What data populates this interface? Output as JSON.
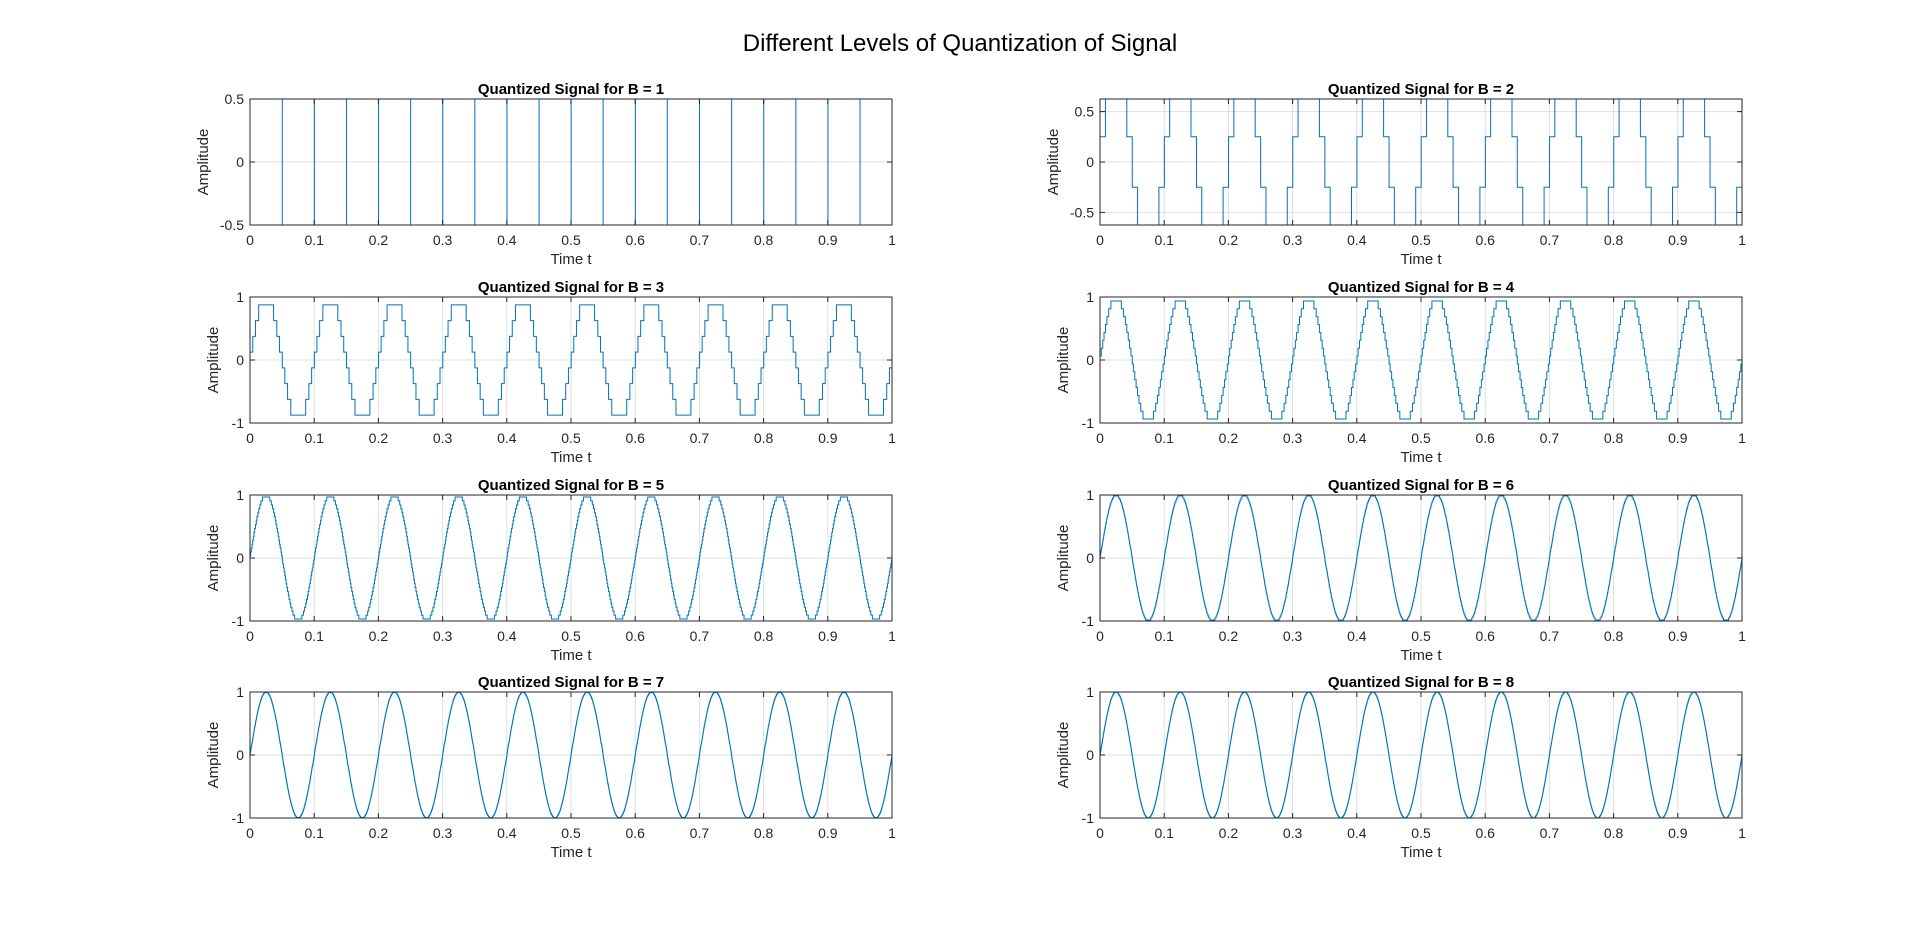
{
  "figure": {
    "title": "Different Levels of Quantization of Signal",
    "colors": {
      "line": "#0072BD",
      "grid": "#dfdfdf",
      "axis": "#262626",
      "background": "#ffffff"
    }
  },
  "chart_data": [
    {
      "type": "line",
      "title": "Quantized Signal for B = 1",
      "xlabel": "Time t",
      "ylabel": "Amplitude",
      "bits": 1,
      "signal": "quantized sin(2*pi*10*t)",
      "frequency_hz": 10,
      "xlim": [
        0,
        1
      ],
      "ylim": [
        -0.5,
        0.5
      ],
      "xticks": [
        0,
        0.1,
        0.2,
        0.3,
        0.4,
        0.5,
        0.6,
        0.7,
        0.8,
        0.9,
        1
      ],
      "xtick_labels": [
        "0",
        "0.1",
        "0.2",
        "0.3",
        "0.4",
        "0.5",
        "0.6",
        "0.7",
        "0.8",
        "0.9",
        "1"
      ],
      "yticks": [
        -0.5,
        0,
        0.5
      ],
      "ytick_labels": [
        "-0.5",
        "0",
        "0.5"
      ],
      "levels": [
        -0.5,
        0.5
      ],
      "grid": true
    },
    {
      "type": "line",
      "title": "Quantized Signal for B = 2",
      "xlabel": "Time t",
      "ylabel": "Amplitude",
      "bits": 2,
      "signal": "quantized sin(2*pi*10*t)",
      "frequency_hz": 10,
      "xlim": [
        0,
        1
      ],
      "ylim": [
        -0.625,
        0.625
      ],
      "xticks": [
        0,
        0.1,
        0.2,
        0.3,
        0.4,
        0.5,
        0.6,
        0.7,
        0.8,
        0.9,
        1
      ],
      "xtick_labels": [
        "0",
        "0.1",
        "0.2",
        "0.3",
        "0.4",
        "0.5",
        "0.6",
        "0.7",
        "0.8",
        "0.9",
        "1"
      ],
      "yticks": [
        -0.5,
        0,
        0.5
      ],
      "ytick_labels": [
        "-0.5",
        "0",
        "0.5"
      ],
      "levels": [
        -0.625,
        -0.125,
        0.125,
        0.625
      ],
      "grid": true
    },
    {
      "type": "line",
      "title": "Quantized Signal for B = 3",
      "xlabel": "Time t",
      "ylabel": "Amplitude",
      "bits": 3,
      "signal": "quantized sin(2*pi*10*t)",
      "frequency_hz": 10,
      "xlim": [
        0,
        1
      ],
      "ylim": [
        -1,
        1
      ],
      "xticks": [
        0,
        0.1,
        0.2,
        0.3,
        0.4,
        0.5,
        0.6,
        0.7,
        0.8,
        0.9,
        1
      ],
      "xtick_labels": [
        "0",
        "0.1",
        "0.2",
        "0.3",
        "0.4",
        "0.5",
        "0.6",
        "0.7",
        "0.8",
        "0.9",
        "1"
      ],
      "yticks": [
        -1,
        0,
        1
      ],
      "ytick_labels": [
        "-1",
        "0",
        "1"
      ],
      "levels": [
        -0.78125,
        -0.53125,
        -0.28125,
        -0.03125,
        0.21875,
        0.46875,
        0.71875,
        0.78125
      ],
      "grid": true
    },
    {
      "type": "line",
      "title": "Quantized Signal for B = 4",
      "xlabel": "Time t",
      "ylabel": "Amplitude",
      "bits": 4,
      "signal": "quantized sin(2*pi*10*t)",
      "frequency_hz": 10,
      "xlim": [
        0,
        1
      ],
      "ylim": [
        -1,
        1
      ],
      "xticks": [
        0,
        0.1,
        0.2,
        0.3,
        0.4,
        0.5,
        0.6,
        0.7,
        0.8,
        0.9,
        1
      ],
      "xtick_labels": [
        "0",
        "0.1",
        "0.2",
        "0.3",
        "0.4",
        "0.5",
        "0.6",
        "0.7",
        "0.8",
        "0.9",
        "1"
      ],
      "yticks": [
        -1,
        0,
        1
      ],
      "ytick_labels": [
        "-1",
        "0",
        "1"
      ],
      "levels_range": [
        -0.88,
        0.88
      ],
      "grid": true
    },
    {
      "type": "line",
      "title": "Quantized Signal for B = 5",
      "xlabel": "Time t",
      "ylabel": "Amplitude",
      "bits": 5,
      "signal": "quantized sin(2*pi*10*t)",
      "frequency_hz": 10,
      "xlim": [
        0,
        1
      ],
      "ylim": [
        -1,
        1
      ],
      "xticks": [
        0,
        0.1,
        0.2,
        0.3,
        0.4,
        0.5,
        0.6,
        0.7,
        0.8,
        0.9,
        1
      ],
      "xtick_labels": [
        "0",
        "0.1",
        "0.2",
        "0.3",
        "0.4",
        "0.5",
        "0.6",
        "0.7",
        "0.8",
        "0.9",
        "1"
      ],
      "yticks": [
        -1,
        0,
        1
      ],
      "ytick_labels": [
        "-1",
        "0",
        "1"
      ],
      "levels_range": [
        -0.94,
        0.94
      ],
      "grid": true
    },
    {
      "type": "line",
      "title": "Quantized Signal for B = 6",
      "xlabel": "Time t",
      "ylabel": "Amplitude",
      "bits": 6,
      "signal": "quantized sin(2*pi*10*t)",
      "frequency_hz": 10,
      "xlim": [
        0,
        1
      ],
      "ylim": [
        -1,
        1
      ],
      "xticks": [
        0,
        0.1,
        0.2,
        0.3,
        0.4,
        0.5,
        0.6,
        0.7,
        0.8,
        0.9,
        1
      ],
      "xtick_labels": [
        "0",
        "0.1",
        "0.2",
        "0.3",
        "0.4",
        "0.5",
        "0.6",
        "0.7",
        "0.8",
        "0.9",
        "1"
      ],
      "yticks": [
        -1,
        0,
        1
      ],
      "ytick_labels": [
        "-1",
        "0",
        "1"
      ],
      "levels_range": [
        -0.97,
        0.97
      ],
      "grid": true
    },
    {
      "type": "line",
      "title": "Quantized Signal for B = 7",
      "xlabel": "Time t",
      "ylabel": "Amplitude",
      "bits": 7,
      "signal": "quantized sin(2*pi*10*t)",
      "frequency_hz": 10,
      "xlim": [
        0,
        1
      ],
      "ylim": [
        -1,
        1
      ],
      "xticks": [
        0,
        0.1,
        0.2,
        0.3,
        0.4,
        0.5,
        0.6,
        0.7,
        0.8,
        0.9,
        1
      ],
      "xtick_labels": [
        "0",
        "0.1",
        "0.2",
        "0.3",
        "0.4",
        "0.5",
        "0.6",
        "0.7",
        "0.8",
        "0.9",
        "1"
      ],
      "yticks": [
        -1,
        0,
        1
      ],
      "ytick_labels": [
        "-1",
        "0",
        "1"
      ],
      "levels_range": [
        -0.99,
        0.99
      ],
      "grid": true
    },
    {
      "type": "line",
      "title": "Quantized Signal for B = 8",
      "xlabel": "Time t",
      "ylabel": "Amplitude",
      "bits": 8,
      "signal": "quantized sin(2*pi*10*t)",
      "frequency_hz": 10,
      "xlim": [
        0,
        1
      ],
      "ylim": [
        -1,
        1
      ],
      "xticks": [
        0,
        0.1,
        0.2,
        0.3,
        0.4,
        0.5,
        0.6,
        0.7,
        0.8,
        0.9,
        1
      ],
      "xtick_labels": [
        "0",
        "0.1",
        "0.2",
        "0.3",
        "0.4",
        "0.5",
        "0.6",
        "0.7",
        "0.8",
        "0.9",
        "1"
      ],
      "yticks": [
        -1,
        0,
        1
      ],
      "ytick_labels": [
        "-1",
        "0",
        "1"
      ],
      "levels_range": [
        -1,
        1
      ],
      "grid": true
    }
  ]
}
